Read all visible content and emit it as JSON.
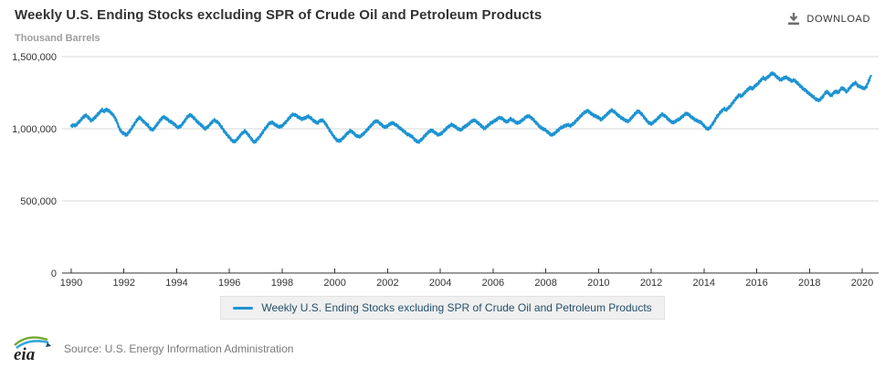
{
  "header": {
    "title": "Weekly U.S. Ending Stocks excluding SPR of Crude Oil and Petroleum Products",
    "download_label": "DOWNLOAD"
  },
  "units_label": "Thousand Barrels",
  "legend": {
    "label": "Weekly U.S. Ending Stocks excluding SPR of Crude Oil and Petroleum Products"
  },
  "footer": {
    "logo_text": "eia",
    "source": "Source: U.S. Energy Information Administration"
  },
  "colors": {
    "line": "#1d93d2",
    "grid": "#d9d9d9",
    "axis": "#333333",
    "tick_text": "#333333",
    "legend_bg": "#f0f0f0",
    "legend_text": "#24506b"
  },
  "chart_data": {
    "type": "line",
    "title": "Weekly U.S. Ending Stocks excluding SPR of Crude Oil and Petroleum Products",
    "xlabel": "",
    "ylabel": "Thousand Barrels",
    "grid": "horizontal-only",
    "legend_position": "bottom",
    "xlim": [
      1990,
      2020.75
    ],
    "ylim": [
      0,
      1500000
    ],
    "y_ticks": [
      0,
      500000,
      1000000,
      1500000
    ],
    "y_tick_labels": [
      "0",
      "500,000",
      "1,000,000",
      "1,500,000"
    ],
    "x_ticks": [
      1990,
      1992,
      1994,
      1996,
      1998,
      2000,
      2002,
      2004,
      2006,
      2008,
      2010,
      2012,
      2014,
      2016,
      2018,
      2020
    ],
    "x_tick_labels": [
      "1990",
      "1992",
      "1994",
      "1996",
      "1998",
      "2000",
      "2002",
      "2004",
      "2006",
      "2008",
      "2010",
      "2012",
      "2014",
      "2016",
      "2018",
      "2020"
    ],
    "x_start": 1990.0,
    "x_step_years": 0.0833333,
    "series": [
      {
        "name": "Weekly U.S. Ending Stocks excluding SPR of Crude Oil and Petroleum Products",
        "values": [
          1019000,
          1025000,
          1022000,
          1038000,
          1055000,
          1072000,
          1088000,
          1092000,
          1075000,
          1058000,
          1066000,
          1082000,
          1098000,
          1115000,
          1130000,
          1122000,
          1133000,
          1126000,
          1112000,
          1096000,
          1075000,
          1040000,
          1000000,
          975000,
          968000,
          955000,
          970000,
          992000,
          1015000,
          1040000,
          1062000,
          1078000,
          1066000,
          1048000,
          1035000,
          1022000,
          1000000,
          992000,
          1008000,
          1028000,
          1048000,
          1068000,
          1082000,
          1075000,
          1062000,
          1050000,
          1042000,
          1030000,
          1015000,
          1008000,
          1022000,
          1042000,
          1062000,
          1085000,
          1095000,
          1088000,
          1072000,
          1055000,
          1040000,
          1028000,
          1012000,
          1000000,
          1010000,
          1028000,
          1045000,
          1060000,
          1052000,
          1040000,
          1020000,
          998000,
          975000,
          958000,
          940000,
          922000,
          910000,
          918000,
          935000,
          955000,
          972000,
          983000,
          970000,
          950000,
          930000,
          908000,
          915000,
          932000,
          950000,
          972000,
          995000,
          1015000,
          1035000,
          1045000,
          1038000,
          1025000,
          1018000,
          1012000,
          1020000,
          1035000,
          1052000,
          1070000,
          1088000,
          1100000,
          1095000,
          1085000,
          1075000,
          1068000,
          1072000,
          1080000,
          1085000,
          1075000,
          1060000,
          1048000,
          1040000,
          1052000,
          1062000,
          1050000,
          1030000,
          1005000,
          980000,
          958000,
          935000,
          920000,
          915000,
          925000,
          940000,
          958000,
          972000,
          985000,
          978000,
          962000,
          950000,
          945000,
          952000,
          965000,
          980000,
          998000,
          1015000,
          1032000,
          1048000,
          1055000,
          1045000,
          1030000,
          1018000,
          1010000,
          1020000,
          1032000,
          1040000,
          1035000,
          1025000,
          1012000,
          1000000,
          988000,
          975000,
          962000,
          955000,
          948000,
          930000,
          915000,
          908000,
          918000,
          935000,
          952000,
          968000,
          982000,
          990000,
          980000,
          968000,
          958000,
          962000,
          975000,
          990000,
          1005000,
          1018000,
          1028000,
          1022000,
          1012000,
          1000000,
          992000,
          1000000,
          1015000,
          1022000,
          1035000,
          1048000,
          1060000,
          1055000,
          1042000,
          1030000,
          1015000,
          1000000,
          1012000,
          1028000,
          1040000,
          1048000,
          1058000,
          1068000,
          1078000,
          1072000,
          1060000,
          1048000,
          1055000,
          1068000,
          1060000,
          1048000,
          1040000,
          1045000,
          1055000,
          1068000,
          1082000,
          1090000,
          1080000,
          1068000,
          1052000,
          1035000,
          1018000,
          1005000,
          998000,
          990000,
          975000,
          962000,
          958000,
          968000,
          982000,
          995000,
          1008000,
          1015000,
          1022000,
          1028000,
          1020000,
          1028000,
          1042000,
          1058000,
          1075000,
          1090000,
          1105000,
          1118000,
          1125000,
          1115000,
          1100000,
          1092000,
          1085000,
          1078000,
          1065000,
          1072000,
          1088000,
          1102000,
          1118000,
          1128000,
          1120000,
          1105000,
          1092000,
          1080000,
          1070000,
          1062000,
          1050000,
          1058000,
          1075000,
          1092000,
          1110000,
          1122000,
          1112000,
          1095000,
          1075000,
          1055000,
          1040000,
          1035000,
          1045000,
          1058000,
          1072000,
          1088000,
          1100000,
          1092000,
          1078000,
          1062000,
          1050000,
          1042000,
          1052000,
          1060000,
          1070000,
          1082000,
          1095000,
          1108000,
          1098000,
          1085000,
          1072000,
          1062000,
          1055000,
          1048000,
          1040000,
          1020000,
          1005000,
          998000,
          1012000,
          1035000,
          1060000,
          1085000,
          1105000,
          1122000,
          1138000,
          1130000,
          1142000,
          1158000,
          1178000,
          1198000,
          1218000,
          1235000,
          1225000,
          1240000,
          1258000,
          1272000,
          1285000,
          1278000,
          1292000,
          1305000,
          1320000,
          1338000,
          1352000,
          1345000,
          1358000,
          1372000,
          1385000,
          1378000,
          1362000,
          1348000,
          1338000,
          1348000,
          1358000,
          1352000,
          1340000,
          1330000,
          1338000,
          1325000,
          1310000,
          1295000,
          1280000,
          1268000,
          1255000,
          1242000,
          1230000,
          1218000,
          1205000,
          1196000,
          1205000,
          1220000,
          1245000,
          1258000,
          1240000,
          1228000,
          1248000,
          1262000,
          1248000,
          1268000,
          1285000,
          1270000,
          1255000,
          1278000,
          1295000,
          1310000,
          1318000,
          1300000,
          1292000,
          1285000,
          1278000,
          1295000,
          1330000,
          1367000
        ]
      }
    ]
  }
}
